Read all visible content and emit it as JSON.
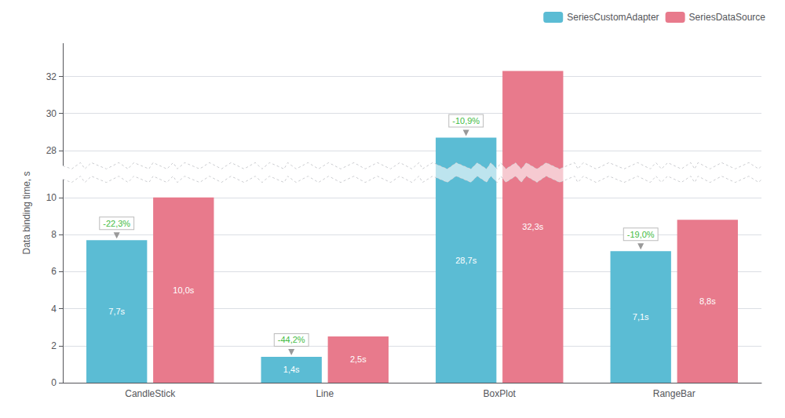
{
  "chart_data": {
    "type": "bar",
    "categories": [
      "CandleStick",
      "Line",
      "BoxPlot",
      "RangeBar"
    ],
    "series": [
      {
        "name": "SeriesCustomAdapter",
        "color": "#5bbcd4",
        "values": [
          7.7,
          1.4,
          28.7,
          7.1
        ],
        "value_labels": [
          "7,7s",
          "1,4s",
          "28,7s",
          "7,1s"
        ]
      },
      {
        "name": "SeriesDataSource",
        "color": "#e87a8c",
        "values": [
          10.0,
          2.5,
          32.3,
          8.8
        ],
        "value_labels": [
          "10,0s",
          "2,5s",
          "32,3s",
          "8,8s"
        ]
      }
    ],
    "ylabel": "Data binding time, s",
    "ylim": [
      0,
      33.8
    ],
    "ybreak": [
      11.0,
      27.2
    ],
    "yticks": [
      0,
      2,
      4,
      6,
      8,
      10,
      28,
      30,
      32
    ],
    "grid": true,
    "legend": "upper right",
    "data_labels": true,
    "annotations": [
      {
        "text": "-22,3%",
        "category": "CandleStick",
        "series": "SeriesCustomAdapter",
        "color": "#44bb44"
      },
      {
        "text": "-44,2%",
        "category": "Line",
        "series": "SeriesCustomAdapter",
        "color": "#44bb44"
      },
      {
        "text": "-10,9%",
        "category": "BoxPlot",
        "series": "SeriesCustomAdapter",
        "color": "#44bb44"
      },
      {
        "text": "-19,0%",
        "category": "RangeBar",
        "series": "SeriesCustomAdapter",
        "color": "#44bb44"
      }
    ]
  }
}
